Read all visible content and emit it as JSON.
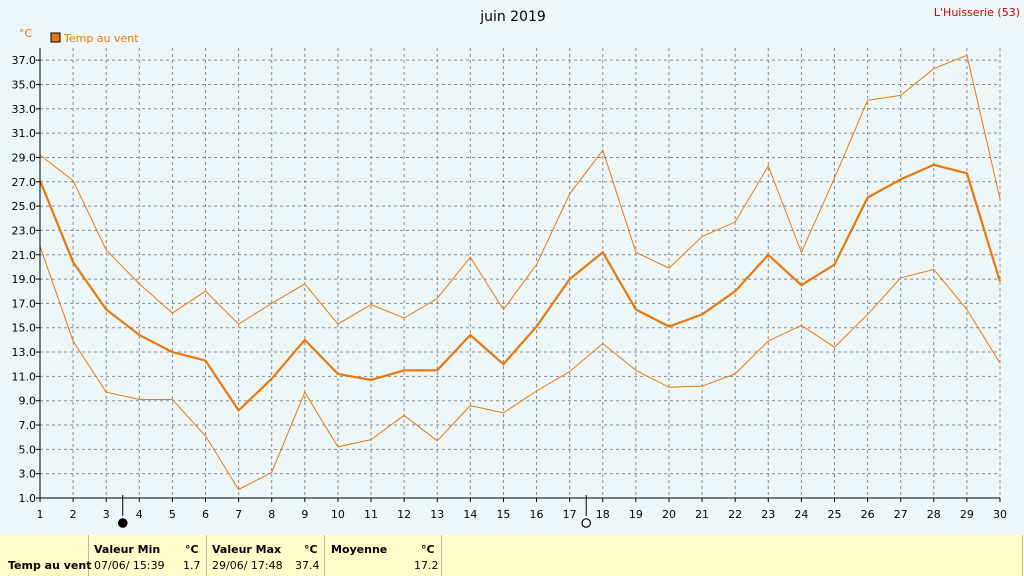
{
  "header": {
    "title": "juin 2019",
    "station": "L'Huisserie (53)"
  },
  "chart_data": {
    "type": "line",
    "unit": "°C",
    "x": [
      1,
      2,
      3,
      4,
      5,
      6,
      7,
      8,
      9,
      10,
      11,
      12,
      13,
      14,
      15,
      16,
      17,
      18,
      19,
      20,
      21,
      22,
      23,
      24,
      25,
      26,
      27,
      28,
      29,
      30
    ],
    "xlim": [
      1,
      30
    ],
    "ylim": [
      1.0,
      38.0
    ],
    "yticks": [
      "37.0",
      "35.0",
      "33.0",
      "31.0",
      "29.0",
      "27.0",
      "25.0",
      "23.0",
      "21.0",
      "19.0",
      "17.0",
      "15.0",
      "13.0",
      "11.0",
      "9.0",
      "7.0",
      "5.0",
      "3.0",
      "1.0"
    ],
    "grid": true,
    "legend": "top-left",
    "series": [
      {
        "name": "Temp au vent",
        "role": "mean",
        "color": "#e8780e",
        "values": [
          27.1,
          20.4,
          16.5,
          14.4,
          13.0,
          12.3,
          8.2,
          10.8,
          14.0,
          11.2,
          10.7,
          11.5,
          11.5,
          14.4,
          12.0,
          15.1,
          19.0,
          21.2,
          16.5,
          15.1,
          16.1,
          18.0,
          21.0,
          18.5,
          20.2,
          25.7,
          27.2,
          28.4,
          27.7,
          18.8
        ]
      },
      {
        "role": "max",
        "color": "#e8780e",
        "values": [
          29.2,
          27.1,
          21.4,
          18.6,
          16.2,
          18.0,
          15.3,
          17.0,
          18.6,
          15.3,
          16.9,
          15.8,
          17.4,
          20.8,
          16.5,
          20.2,
          26.0,
          29.6,
          21.2,
          19.9,
          22.5,
          23.7,
          28.3,
          21.2,
          27.3,
          33.7,
          34.1,
          36.3,
          37.4,
          25.6
        ]
      },
      {
        "role": "min",
        "color": "#e8780e",
        "values": [
          21.7,
          13.9,
          9.7,
          9.1,
          9.1,
          6.1,
          1.7,
          3.1,
          9.7,
          5.2,
          5.8,
          7.8,
          5.7,
          8.6,
          8.0,
          9.8,
          11.4,
          13.7,
          11.5,
          10.1,
          10.2,
          11.2,
          13.9,
          15.2,
          13.4,
          16.1,
          19.1,
          19.8,
          16.5,
          12.1
        ]
      }
    ],
    "moon_phases": [
      {
        "day": 3.5,
        "phase": "new-moon"
      },
      {
        "day": 17.5,
        "phase": "full-moon"
      }
    ]
  },
  "footer": {
    "row_label": "Temp au vent",
    "min": {
      "label": "Valeur Min",
      "unit": "°C",
      "datetime": "07/06/  15:39",
      "value": "1.7"
    },
    "max": {
      "label": "Valeur Max",
      "unit": "°C",
      "datetime": "29/06/  17:48",
      "value": "37.4"
    },
    "avg": {
      "label": "Moyenne",
      "unit": "°C",
      "value": "17.2"
    }
  }
}
